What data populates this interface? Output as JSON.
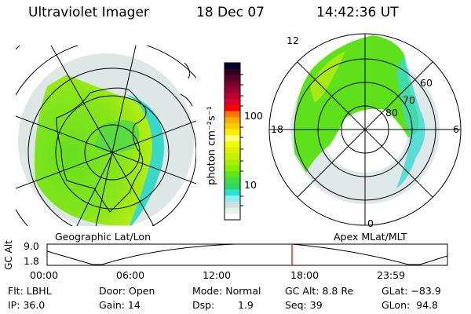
{
  "header": {
    "instrument": "Ultraviolet Imager",
    "date": "18 Dec 07",
    "time": "14:42:36 UT"
  },
  "geo_map": {
    "label": "Geographic Lat/Lon"
  },
  "mag_map": {
    "label": "Apex MLat/MLT",
    "mlt_labels": {
      "top": "12",
      "left": "18",
      "right": "6",
      "bottom": "0"
    },
    "lat_labels": [
      "80",
      "70",
      "60"
    ]
  },
  "colorbar": {
    "unit_label": "photon cm⁻²s⁻¹",
    "ticks": [
      "100",
      "10"
    ],
    "scale": "log",
    "colors": [
      "#000033",
      "#330022",
      "#55002a",
      "#770030",
      "#990033",
      "#bb0030",
      "#dd0030",
      "#ff0000",
      "#ff7700",
      "#ffaa00",
      "#ffcc00",
      "#ffee00",
      "#ffff77",
      "#eeff00",
      "#ddf000",
      "#c8f000",
      "#a8f000",
      "#88ee00",
      "#5ee81a",
      "#44dd44",
      "#2ed866",
      "#2ee0d0",
      "#8eeef0",
      "#d0e0e0",
      "#e8f0ec",
      "#ffffff"
    ]
  },
  "altitude_plot": {
    "ylabel": "GC Alt",
    "yticks": [
      "9.0",
      "1.8"
    ],
    "xticks": [
      "00:00",
      "06:00",
      "12:00",
      "18:00",
      "23:59"
    ],
    "current_marker_color": "#ff0000"
  },
  "info": {
    "filter": "Flt: LBHL",
    "ip": "IP: 36.0",
    "door": "Door: Open",
    "gain": "Gain: 14",
    "mode": "Mode: Normal",
    "dsp_label": "Dsp:",
    "dsp_value": "1.9",
    "gc_alt": "GC Alt: 8.8 Re",
    "seq": "Seq: 39",
    "glat": "GLat: −83.9",
    "glon": "GLon:  94.8"
  }
}
